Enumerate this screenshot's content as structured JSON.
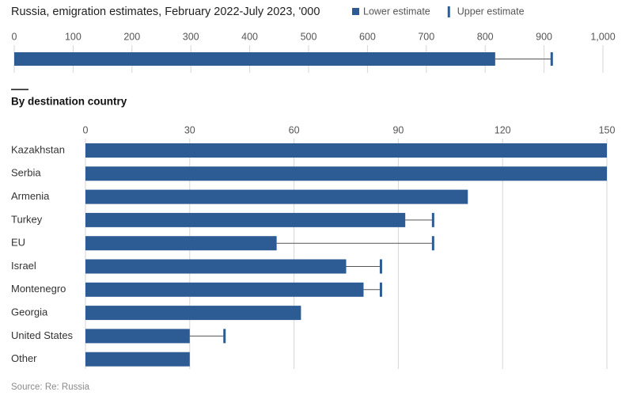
{
  "chart_data": [
    {
      "type": "bar",
      "orientation": "horizontal",
      "title": "Russia, emigration estimates, February 2022-July 2023, '000",
      "categories": [
        null
      ],
      "series": [
        {
          "name": "Lower estimate",
          "color": "#2d5b94",
          "values": [
            817
          ]
        },
        {
          "name": "Upper estimate",
          "color": "#2d5b94",
          "values": [
            913
          ]
        }
      ],
      "xlim": [
        0,
        1000
      ],
      "xticks": [
        0,
        100,
        200,
        300,
        400,
        500,
        600,
        700,
        800,
        900,
        {
          "value": 1000,
          "label": "1,000"
        }
      ],
      "grid": true
    },
    {
      "type": "bar",
      "orientation": "horizontal",
      "subtitle": "By destination country",
      "categories": [
        "Kazakhstan",
        "Serbia",
        "Armenia",
        "Turkey",
        "EU",
        "Israel",
        "Montenegro",
        "Georgia",
        "United States",
        "Other"
      ],
      "series": [
        {
          "color": "#2d5b94",
          "values": [
            150,
            150,
            110,
            92,
            55,
            75,
            80,
            62,
            30,
            30
          ]
        },
        {
          "color": "#2d5b94",
          "values": [
            null,
            null,
            null,
            100,
            100,
            85,
            85,
            null,
            40,
            null
          ]
        }
      ],
      "xlim": [
        0,
        150
      ],
      "xticks": [
        0,
        30,
        60,
        90,
        120,
        150
      ],
      "grid": true,
      "source": "Source: Re: Russia"
    }
  ]
}
